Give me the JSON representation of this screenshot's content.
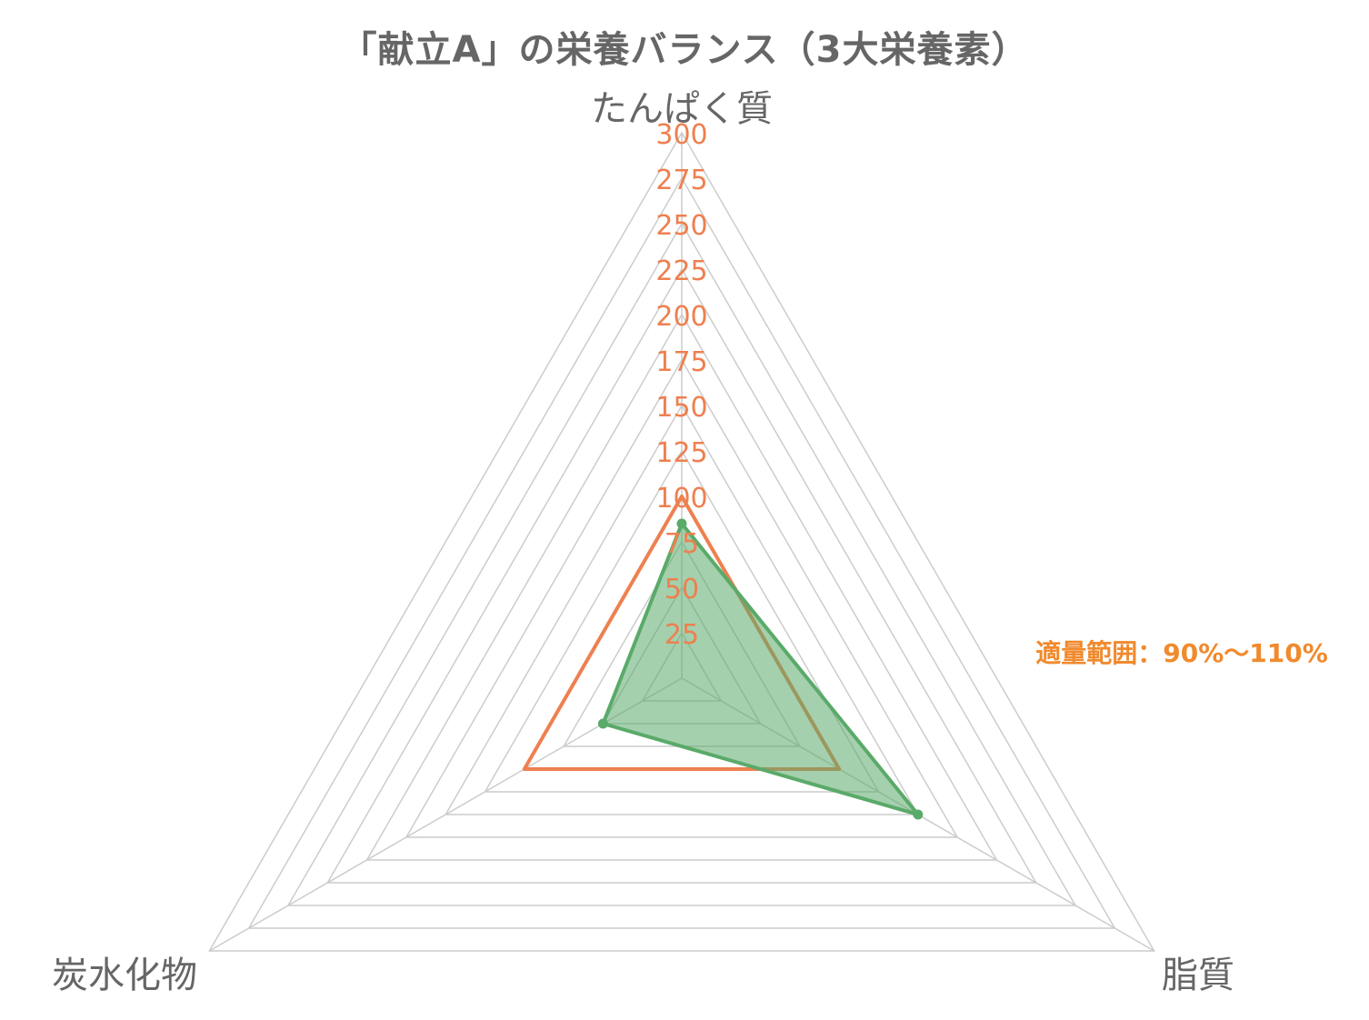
{
  "chart_data": {
    "type": "radar",
    "title": "「献立A」の栄養バランス（3大栄養素）",
    "axes": [
      "たんぱく質",
      "脂質",
      "炭水化物"
    ],
    "r_range": [
      0,
      300
    ],
    "r_ticks": [
      "25",
      "50",
      "75",
      "100",
      "125",
      "150",
      "175",
      "200",
      "225",
      "250",
      "275",
      "300"
    ],
    "series": [
      {
        "values": [
          100,
          100,
          100
        ],
        "filled": false,
        "color": "#ee8050"
      },
      {
        "values": [
          85,
          150,
          50
        ],
        "filled": true,
        "color": "#5aaa69",
        "fill_color": "#5aaa69"
      }
    ],
    "annotation": "適量範囲：90%〜110%",
    "annotation_color": "#f08a2d",
    "grid_color": "#cccccc",
    "tick_color": "#ee8050",
    "axis_label_color": "#666666"
  }
}
